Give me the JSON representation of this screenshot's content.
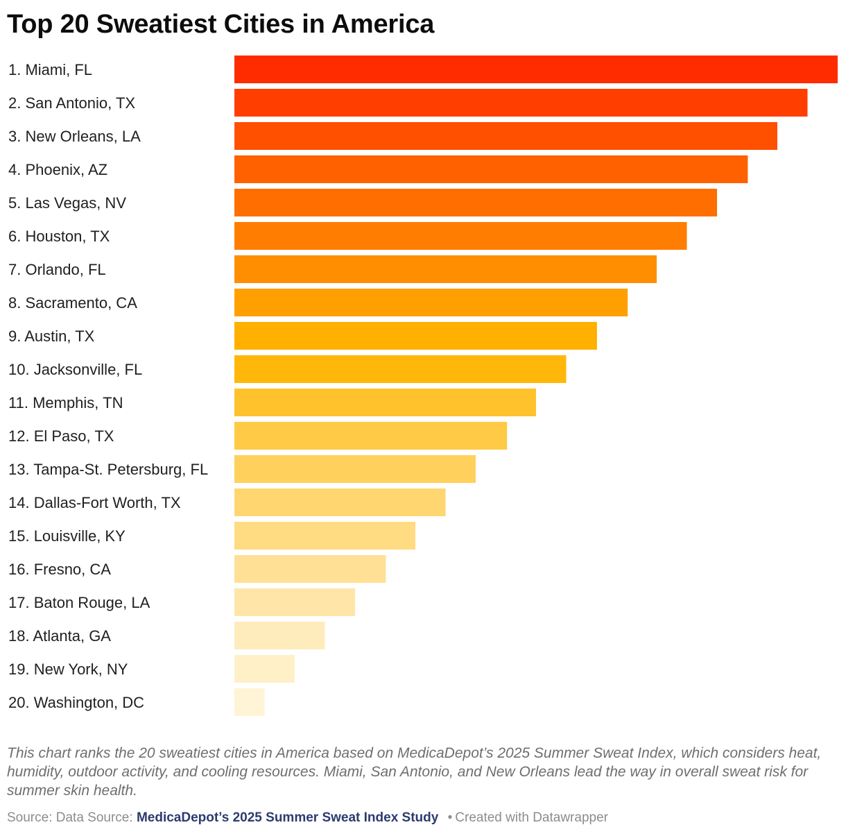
{
  "header": {
    "title": "Top 20 Sweatiest Cities in America"
  },
  "chart_data": {
    "type": "bar",
    "orientation": "horizontal",
    "title": "Top 20 Sweatiest Cities in America",
    "categories": [
      "1. Miami, FL",
      "2. San Antonio, TX",
      "3. New Orleans, LA",
      "4. Phoenix, AZ",
      "5. Las Vegas, NV",
      "6. Houston, TX",
      "7. Orlando, FL",
      "8. Sacramento, CA",
      "9. Austin, TX",
      "10. Jacksonville, FL",
      "11. Memphis, TN",
      "12. El Paso, TX",
      "13. Tampa-St. Petersburg, FL",
      "14. Dallas-Fort Worth, TX",
      "15. Louisville, KY",
      "16. Fresno, CA",
      "17. Baton Rouge, LA",
      "18. Atlanta, GA",
      "19. New York, NY",
      "20. Washington, DC"
    ],
    "values": [
      100,
      95,
      90,
      85.1,
      80,
      75,
      70,
      65.2,
      60.1,
      55,
      50,
      45.2,
      40,
      35,
      30,
      25.1,
      20,
      15,
      10,
      5
    ],
    "colors": [
      "#ff2c00",
      "#ff3e00",
      "#ff5000",
      "#ff6100",
      "#ff6e00",
      "#ff7d00",
      "#ff8f00",
      "#ffa000",
      "#ffb000",
      "#ffb80a",
      "#ffc22d",
      "#ffca45",
      "#ffd15c",
      "#ffd670",
      "#ffdb82",
      "#ffe094",
      "#ffe6a8",
      "#ffecbd",
      "#fff0c8",
      "#fff4d6"
    ],
    "xlim": [
      0,
      100
    ],
    "grid": false,
    "legend": "none"
  },
  "caption": {
    "text": "This chart ranks the 20 sweatiest cities in America based on MedicaDepot’s 2025 Summer Sweat Index, which considers heat, humidity, outdoor activity, and cooling resources. Miami, San Antonio, and New Orleans lead the way in overall sweat risk for summer skin health."
  },
  "footer": {
    "source_prefix": "Source: Data Source:",
    "source_link": "MedicaDepot’s 2025 Summer Sweat Index Study",
    "separator": "•",
    "credit": "Created with Datawrapper"
  }
}
